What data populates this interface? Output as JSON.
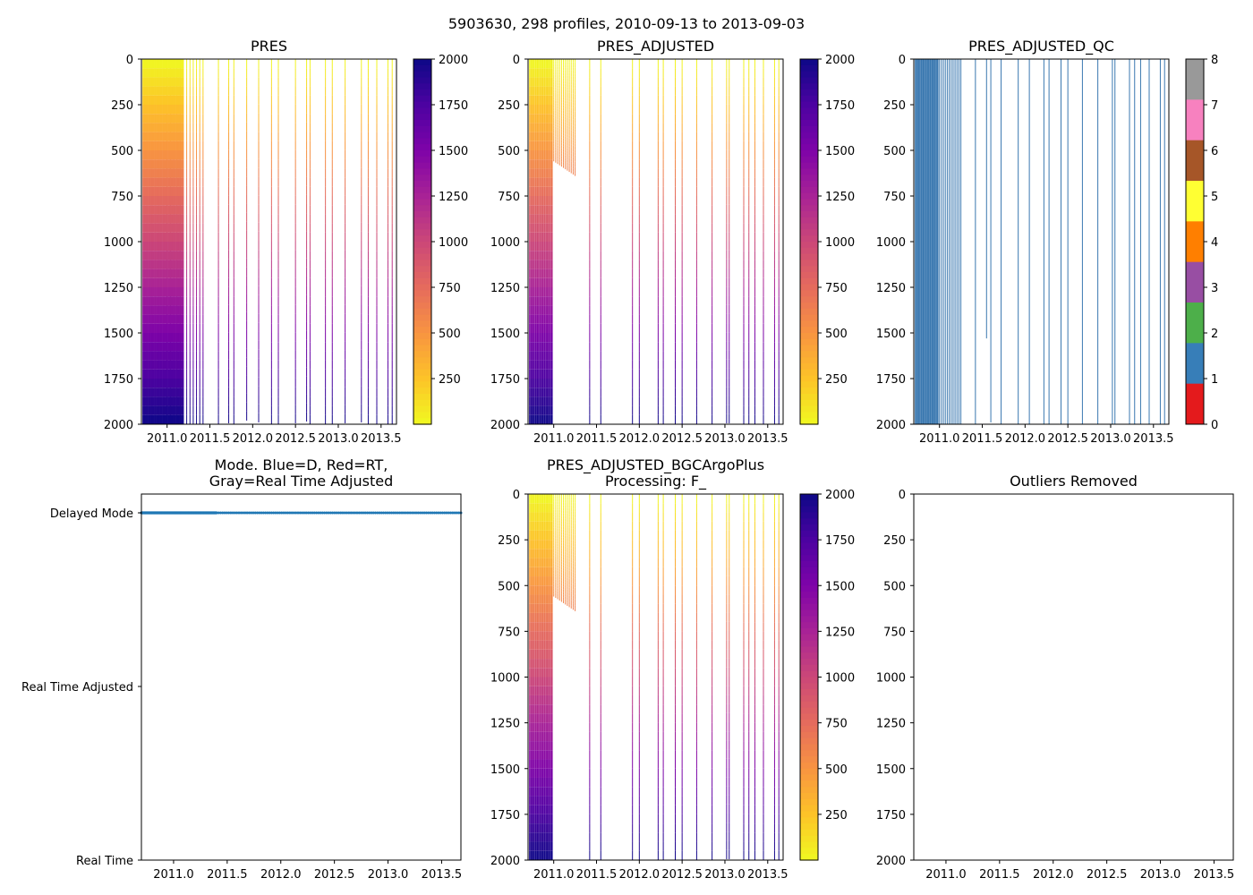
{
  "figure_title": "5903630, 298 profiles, 2010-09-13 to 2013-09-03",
  "colors": {
    "plasma": [
      "#f0f921",
      "#fdc328",
      "#f89441",
      "#e56b5d",
      "#cb4778",
      "#a82296",
      "#7e03a8",
      "#4c02a1",
      "#0d0887"
    ],
    "qc": [
      "#e41a1c",
      "#377eb8",
      "#4daf4a",
      "#984ea3",
      "#ff7f00",
      "#ffff33",
      "#a65628",
      "#f781bf",
      "#999999"
    ],
    "profile_line": "#3a78b0",
    "mode_delayed": "#1f77b4"
  },
  "chart_data": [
    {
      "id": "pres",
      "type": "heatmap",
      "title": "PRES",
      "xlim": [
        2010.7,
        2013.68
      ],
      "ylim": [
        2000,
        0
      ],
      "yticks": [
        "0",
        "250",
        "500",
        "750",
        "1000",
        "1250",
        "1500",
        "1750",
        "2000"
      ],
      "xticks": [
        "2011.0",
        "2011.5",
        "2012.0",
        "2012.5",
        "2013.0",
        "2013.5"
      ],
      "colorbar": {
        "type": "continuous",
        "range": [
          0,
          2000
        ],
        "ticks": [
          "250",
          "500",
          "750",
          "1000",
          "1250",
          "1500",
          "1750",
          "2000"
        ]
      },
      "dense_profiles": {
        "count": 35,
        "xrange": [
          2010.72,
          2011.18
        ],
        "depth_range": [
          2000,
          2000
        ]
      },
      "mid_profiles": {
        "count": 12,
        "xrange": [
          2011.0,
          2011.42
        ],
        "depth_range": [
          2000,
          2000
        ]
      },
      "sparse_profiles": {
        "x": [
          2011.6,
          2011.72,
          2011.78,
          2011.93,
          2012.07,
          2012.22,
          2012.3,
          2012.5,
          2012.63,
          2012.67,
          2012.85,
          2012.93,
          2013.08,
          2013.27,
          2013.35,
          2013.45,
          2013.58,
          2013.63
        ],
        "depth": [
          2000,
          1995,
          2000,
          1980,
          1990,
          2000,
          2000,
          1995,
          1985,
          2000,
          2000,
          2000,
          1995,
          1990,
          2000,
          2000,
          2000,
          2000
        ]
      }
    },
    {
      "id": "pres_adjusted",
      "type": "heatmap",
      "title": "PRES_ADJUSTED",
      "xlim": [
        2010.7,
        2013.68
      ],
      "ylim": [
        2000,
        0
      ],
      "yticks": [
        "0",
        "250",
        "500",
        "750",
        "1000",
        "1250",
        "1500",
        "1750",
        "2000"
      ],
      "xticks": [
        "2011.0",
        "2011.5",
        "2012.0",
        "2012.5",
        "2013.0",
        "2013.5"
      ],
      "colorbar": {
        "type": "continuous",
        "range": [
          0,
          2000
        ],
        "ticks": [
          "250",
          "500",
          "750",
          "1000",
          "1250",
          "1500",
          "1750",
          "2000"
        ]
      },
      "dense_profiles": {
        "count": 16,
        "xrange": [
          2010.72,
          2010.98
        ],
        "depth_range": [
          2000,
          2000
        ]
      },
      "mid_profiles": {
        "count": 12,
        "xrange": [
          2011.0,
          2011.25
        ],
        "depth_range": [
          560,
          640
        ]
      },
      "sparse_profiles": {
        "x": [
          2011.42,
          2011.55,
          2011.92,
          2012.0,
          2012.22,
          2012.28,
          2012.42,
          2012.5,
          2012.67,
          2012.85,
          2013.02,
          2013.05,
          2013.22,
          2013.28,
          2013.35,
          2013.45,
          2013.58,
          2013.63
        ],
        "depth": [
          2000,
          2000,
          2000,
          2000,
          2000,
          2000,
          2000,
          2000,
          2000,
          2000,
          1995,
          1995,
          2000,
          2000,
          2000,
          2000,
          2000,
          2000
        ]
      }
    },
    {
      "id": "pres_adjusted_qc",
      "type": "heatmap",
      "title": "PRES_ADJUSTED_QC",
      "xlim": [
        2010.7,
        2013.68
      ],
      "ylim": [
        2000,
        0
      ],
      "yticks": [
        "0",
        "250",
        "500",
        "750",
        "1000",
        "1250",
        "1500",
        "1750",
        "2000"
      ],
      "xticks": [
        "2011.0",
        "2011.5",
        "2012.0",
        "2012.5",
        "2013.0",
        "2013.5"
      ],
      "colorbar": {
        "type": "discrete",
        "range": [
          0,
          8
        ],
        "ticks": [
          "0",
          "1",
          "2",
          "3",
          "4",
          "5",
          "6",
          "7",
          "8"
        ]
      },
      "qc_value": 1,
      "dense_profiles": {
        "count": 16,
        "xrange": [
          2010.72,
          2010.98
        ],
        "depth_range": [
          2000,
          2000
        ]
      },
      "mid_profiles": {
        "count": 12,
        "xrange": [
          2011.0,
          2011.25
        ],
        "depth_range": [
          2000,
          2000
        ]
      },
      "sparse_profiles": {
        "x": [
          2011.42,
          2011.55,
          2011.6,
          2011.72,
          2011.92,
          2012.05,
          2012.22,
          2012.28,
          2012.42,
          2012.5,
          2012.67,
          2012.85,
          2013.02,
          2013.05,
          2013.22,
          2013.28,
          2013.35,
          2013.45,
          2013.58,
          2013.63
        ],
        "depth": [
          2000,
          1530,
          1990,
          2000,
          2000,
          2000,
          2000,
          2000,
          2000,
          2000,
          2000,
          2000,
          2000,
          2000,
          2000,
          2000,
          2000,
          2000,
          2000,
          2000
        ]
      }
    },
    {
      "id": "mode",
      "type": "scatter",
      "title": "Mode. Blue=D, Red=RT,\nGray=Real Time Adjusted",
      "xlim": [
        2010.7,
        2013.68
      ],
      "ylim": [
        0,
        2
      ],
      "xticks": [
        "2011.0",
        "2011.5",
        "2012.0",
        "2012.5",
        "2013.0",
        "2013.5"
      ],
      "ycategories": [
        "Real Time",
        "Real Time Adjusted",
        "Delayed Mode"
      ],
      "dense_points": {
        "count": 140,
        "xrange": [
          2010.7,
          2011.4
        ],
        "category": "Delayed Mode"
      },
      "sparse_points": {
        "count": 120,
        "xrange": [
          2011.42,
          2013.68
        ],
        "category": "Delayed Mode"
      }
    },
    {
      "id": "bgc",
      "type": "heatmap",
      "title": "PRES_ADJUSTED_BGCArgoPlus\nProcessing: F_",
      "xlim": [
        2010.7,
        2013.68
      ],
      "ylim": [
        2000,
        0
      ],
      "yticks": [
        "0",
        "250",
        "500",
        "750",
        "1000",
        "1250",
        "1500",
        "1750",
        "2000"
      ],
      "xticks": [
        "2011.0",
        "2011.5",
        "2012.0",
        "2012.5",
        "2013.0",
        "2013.5"
      ],
      "colorbar": {
        "type": "continuous",
        "range": [
          0,
          2000
        ],
        "ticks": [
          "250",
          "500",
          "750",
          "1000",
          "1250",
          "1500",
          "1750",
          "2000"
        ]
      },
      "dense_profiles": {
        "count": 16,
        "xrange": [
          2010.72,
          2010.98
        ],
        "depth_range": [
          2000,
          2000
        ]
      },
      "mid_profiles": {
        "count": 12,
        "xrange": [
          2011.0,
          2011.25
        ],
        "depth_range": [
          560,
          640
        ]
      },
      "sparse_profiles": {
        "x": [
          2011.42,
          2011.55,
          2011.92,
          2012.0,
          2012.22,
          2012.28,
          2012.42,
          2012.5,
          2012.67,
          2012.85,
          2013.02,
          2013.05,
          2013.22,
          2013.28,
          2013.35,
          2013.45,
          2013.58,
          2013.63
        ],
        "depth": [
          2000,
          2000,
          2000,
          2000,
          2000,
          2000,
          2000,
          2000,
          2000,
          2000,
          1995,
          1995,
          2000,
          2000,
          2000,
          2000,
          2000,
          2000
        ]
      }
    },
    {
      "id": "outliers",
      "type": "scatter",
      "title": "Outliers Removed",
      "xlim": [
        2010.7,
        2013.68
      ],
      "ylim": [
        2000,
        0
      ],
      "yticks": [
        "0",
        "250",
        "500",
        "750",
        "1000",
        "1250",
        "1500",
        "1750",
        "2000"
      ],
      "xticks": [
        "2011.0",
        "2011.5",
        "2012.0",
        "2012.5",
        "2013.0",
        "2013.5"
      ],
      "points": []
    }
  ]
}
